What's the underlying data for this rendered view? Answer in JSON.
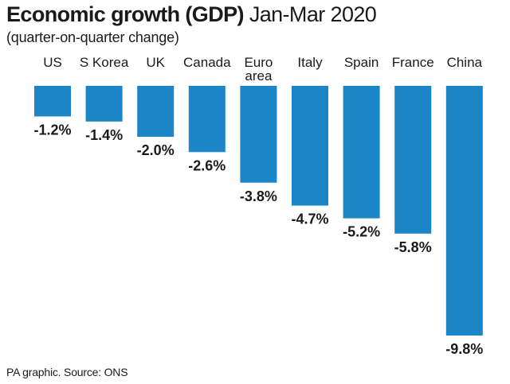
{
  "header": {
    "title_bold": "Economic growth (GDP)",
    "title_light": "Jan-Mar 2020",
    "subtitle": "(quarter-on-quarter change)"
  },
  "footer": {
    "source": "PA graphic. Source: ONS"
  },
  "colors": {
    "bar": "#1a86c8",
    "text": "#1a1a1a"
  },
  "chart_data": {
    "type": "bar",
    "title": "Economic growth (GDP) Jan-Mar 2020",
    "subtitle": "(quarter-on-quarter change)",
    "orientation": "vertical-downward",
    "unit": "%",
    "categories": [
      "US",
      "S Korea",
      "UK",
      "Canada",
      "Euro area",
      "Italy",
      "Spain",
      "France",
      "China"
    ],
    "category_lines": [
      [
        "US"
      ],
      [
        "S Korea"
      ],
      [
        "UK"
      ],
      [
        "Canada"
      ],
      [
        "Euro",
        "area"
      ],
      [
        "Italy"
      ],
      [
        "Spain"
      ],
      [
        "France"
      ],
      [
        "China"
      ]
    ],
    "values": [
      -1.2,
      -1.4,
      -2.0,
      -2.6,
      -3.8,
      -4.7,
      -5.2,
      -5.8,
      -9.8
    ],
    "value_labels": [
      "-1.2%",
      "-1.4%",
      "-2.0%",
      "-2.6%",
      "-3.8%",
      "-4.7%",
      "-5.2%",
      "-5.8%",
      "-9.8%"
    ],
    "ylim": [
      -9.8,
      0
    ],
    "grid": false,
    "legend": "none"
  }
}
